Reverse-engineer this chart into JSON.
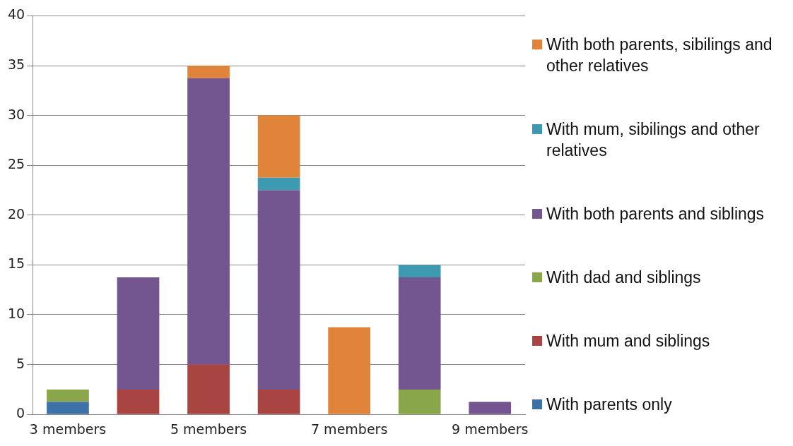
{
  "chart_data": {
    "type": "bar",
    "stacked": true,
    "categories": [
      "3 members",
      null,
      "5 members",
      null,
      "7 members",
      null,
      "9 members"
    ],
    "series": [
      {
        "name": "With parents only",
        "color": "#3d72a8",
        "values": [
          1.25,
          null,
          null,
          null,
          null,
          null,
          null
        ]
      },
      {
        "name": "With mum and siblings",
        "color": "#a84442",
        "values": [
          null,
          2.5,
          5,
          2.5,
          null,
          null,
          null
        ]
      },
      {
        "name": "With dad and siblings",
        "color": "#8aa64a",
        "values": [
          1.25,
          null,
          null,
          null,
          null,
          2.5,
          null
        ]
      },
      {
        "name": "With both parents and siblings",
        "color": "#735590",
        "values": [
          null,
          11.25,
          28.75,
          20,
          null,
          11.25,
          1.25
        ]
      },
      {
        "name": "With mum, sibilings and other relatives",
        "color": "#3e9ab0",
        "values": [
          null,
          null,
          null,
          1.25,
          null,
          1.25,
          null
        ]
      },
      {
        "name": "With both parents, sibilings and other relatives",
        "color": "#e0843a",
        "values": [
          null,
          null,
          1.25,
          6.25,
          8.75,
          null,
          null
        ]
      }
    ],
    "ylim": [
      0,
      40
    ],
    "yticks": [
      0,
      5,
      10,
      15,
      20,
      25,
      30,
      35,
      40
    ],
    "grid": "y",
    "legend": "right"
  }
}
